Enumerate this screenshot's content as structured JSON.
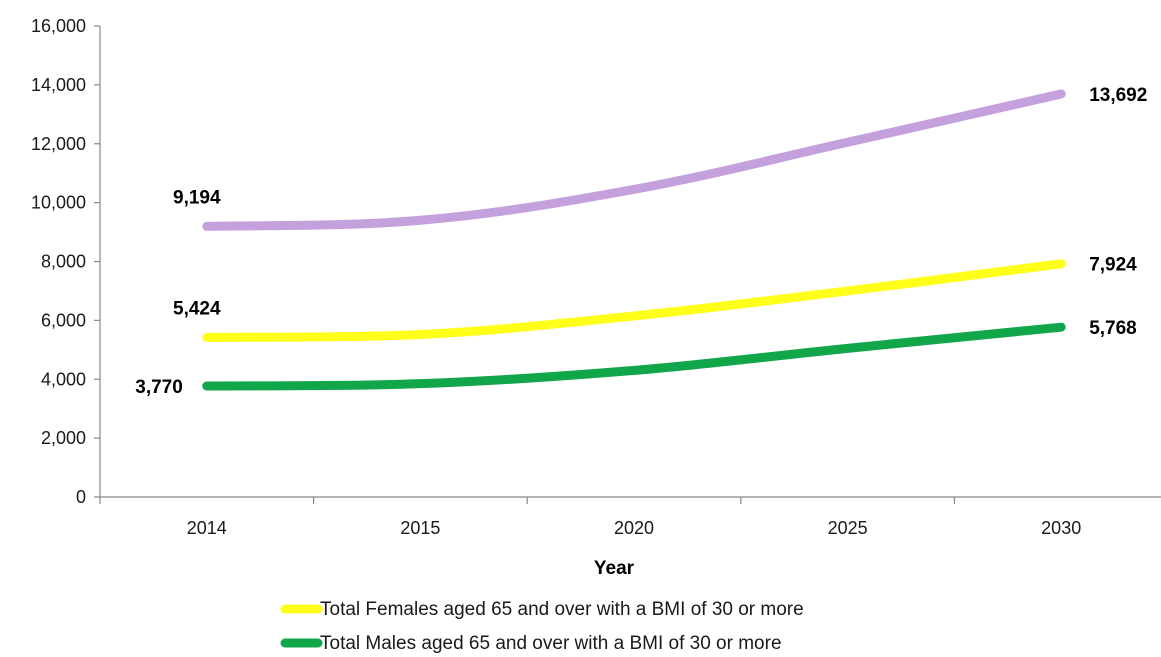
{
  "chart_data": {
    "type": "line",
    "title": "",
    "xlabel": "Year",
    "ylabel": "",
    "ylim": [
      0,
      16000
    ],
    "yticks": [
      "0",
      "2,000",
      "4,000",
      "6,000",
      "8,000",
      "10,000",
      "12,000",
      "14,000",
      "16,000"
    ],
    "categories": [
      "2014",
      "2015",
      "2020",
      "2025",
      "2030"
    ],
    "grid": false,
    "legend": "bottom",
    "series": [
      {
        "name": "",
        "color": "#c4a1dd",
        "values": [
          9194,
          9400,
          10450,
          12050,
          13692
        ],
        "labels": {
          "first": "9,194",
          "last": "13,692"
        }
      },
      {
        "name": "Total Females aged 65 and over with a BMI of 30 or more",
        "color": "#ffff1a",
        "values": [
          5424,
          5520,
          6150,
          7000,
          7924
        ],
        "labels": {
          "first": "5,424",
          "last": "7,924"
        }
      },
      {
        "name": "Total Males aged 65 and over with a BMI of 30 or more",
        "color": "#12a64a",
        "values": [
          3770,
          3850,
          4300,
          5050,
          5768
        ],
        "labels": {
          "first": "3,770",
          "last": "5,768"
        }
      }
    ]
  }
}
